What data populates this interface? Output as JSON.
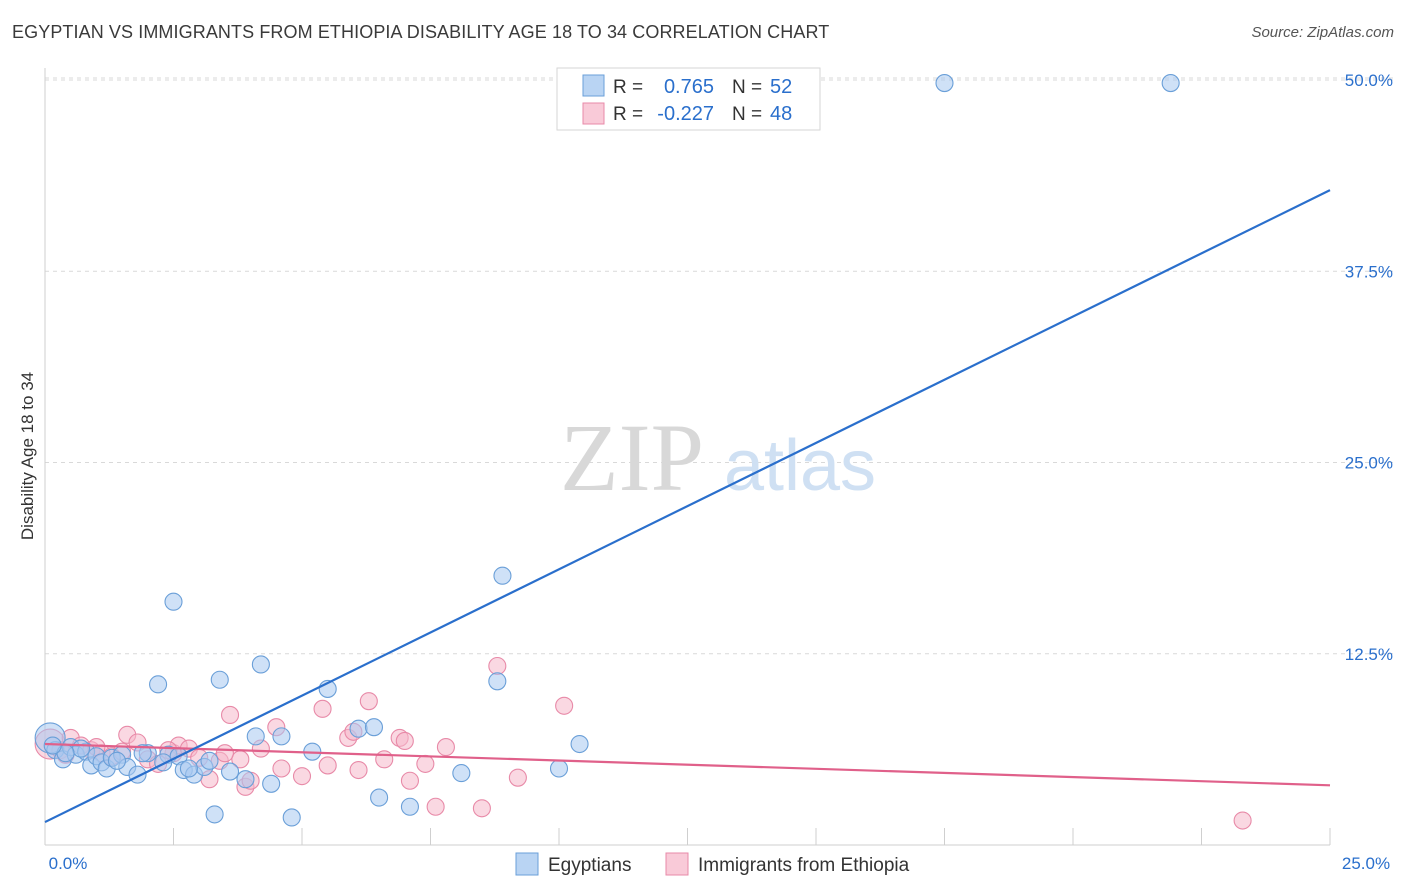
{
  "header": {
    "title": "EGYPTIAN VS IMMIGRANTS FROM ETHIOPIA DISABILITY AGE 18 TO 34 CORRELATION CHART",
    "source": "Source: ZipAtlas.com"
  },
  "watermark": {
    "zip": "ZIP",
    "atlas": "atlas"
  },
  "colors": {
    "blue_fill": "#a8c8f0",
    "blue_stroke": "#6a9fd8",
    "blue_line": "#2a6fcc",
    "pink_fill": "#f5b8cb",
    "pink_stroke": "#e88aa8",
    "pink_line": "#e0608a",
    "value_text": "#2a6fcc",
    "grid": "#d9d9d9"
  },
  "legend": {
    "rows": [
      {
        "r_label": "R =",
        "r_value": "0.765",
        "n_label": "N =",
        "n_value": "52"
      },
      {
        "r_label": "R =",
        "r_value": "-0.227",
        "n_label": "N =",
        "n_value": "48"
      }
    ]
  },
  "chart_data": {
    "type": "scatter",
    "title": "EGYPTIAN VS IMMIGRANTS FROM ETHIOPIA DISABILITY AGE 18 TO 34 CORRELATION CHART",
    "xlabel": "",
    "ylabel": "Disability Age 18 to 34",
    "xlim": [
      0,
      25
    ],
    "ylim": [
      0,
      52
    ],
    "x_tick_labels": [
      "0.0%",
      "25.0%"
    ],
    "y_ticks": [
      {
        "value": 12.5,
        "label": "12.5%"
      },
      {
        "value": 25.0,
        "label": "25.0%"
      },
      {
        "value": 37.5,
        "label": "37.5%"
      },
      {
        "value": 50.0,
        "label": "50.0%"
      }
    ],
    "series": [
      {
        "name": "Egyptians",
        "color": "#a8c8f0",
        "r": 0.765,
        "n": 52,
        "trend": {
          "x": [
            0,
            25
          ],
          "y": [
            1.5,
            42.8
          ]
        },
        "points": [
          {
            "x": 0.1,
            "y": 7.0,
            "big": true
          },
          {
            "x": 0.2,
            "y": 6.2
          },
          {
            "x": 0.35,
            "y": 5.6
          },
          {
            "x": 0.5,
            "y": 6.4
          },
          {
            "x": 0.6,
            "y": 5.9
          },
          {
            "x": 0.8,
            "y": 6.1
          },
          {
            "x": 0.9,
            "y": 5.2
          },
          {
            "x": 1.0,
            "y": 5.8
          },
          {
            "x": 1.1,
            "y": 5.4
          },
          {
            "x": 1.2,
            "y": 5.0
          },
          {
            "x": 1.3,
            "y": 5.7
          },
          {
            "x": 1.5,
            "y": 5.9
          },
          {
            "x": 1.6,
            "y": 5.1
          },
          {
            "x": 1.8,
            "y": 4.6
          },
          {
            "x": 2.0,
            "y": 6.0
          },
          {
            "x": 2.2,
            "y": 10.5
          },
          {
            "x": 2.4,
            "y": 5.9
          },
          {
            "x": 2.5,
            "y": 15.9
          },
          {
            "x": 2.6,
            "y": 5.8
          },
          {
            "x": 2.7,
            "y": 4.9
          },
          {
            "x": 2.9,
            "y": 4.6
          },
          {
            "x": 3.1,
            "y": 5.1
          },
          {
            "x": 3.3,
            "y": 2.0
          },
          {
            "x": 3.4,
            "y": 10.8
          },
          {
            "x": 3.6,
            "y": 4.8
          },
          {
            "x": 3.9,
            "y": 4.3
          },
          {
            "x": 4.1,
            "y": 7.1
          },
          {
            "x": 4.2,
            "y": 11.8
          },
          {
            "x": 4.4,
            "y": 4.0
          },
          {
            "x": 4.6,
            "y": 7.1
          },
          {
            "x": 4.8,
            "y": 1.8
          },
          {
            "x": 5.2,
            "y": 6.1
          },
          {
            "x": 5.5,
            "y": 10.2
          },
          {
            "x": 6.1,
            "y": 7.6
          },
          {
            "x": 6.4,
            "y": 7.7
          },
          {
            "x": 6.5,
            "y": 3.1
          },
          {
            "x": 7.1,
            "y": 2.5
          },
          {
            "x": 8.1,
            "y": 4.7
          },
          {
            "x": 8.8,
            "y": 10.7
          },
          {
            "x": 8.9,
            "y": 17.6
          },
          {
            "x": 10.0,
            "y": 5.0
          },
          {
            "x": 10.4,
            "y": 6.6
          },
          {
            "x": 17.5,
            "y": 49.8
          },
          {
            "x": 21.9,
            "y": 49.8
          },
          {
            "x": 1.9,
            "y": 6.0
          },
          {
            "x": 0.7,
            "y": 6.3
          },
          {
            "x": 2.3,
            "y": 5.4
          },
          {
            "x": 0.4,
            "y": 6.0
          },
          {
            "x": 3.2,
            "y": 5.5
          },
          {
            "x": 1.4,
            "y": 5.5
          },
          {
            "x": 0.15,
            "y": 6.5
          },
          {
            "x": 2.8,
            "y": 5.0
          }
        ]
      },
      {
        "name": "Immigrants from Ethiopia",
        "color": "#f5b8cb",
        "r": -0.227,
        "n": 48,
        "trend": {
          "x": [
            0,
            25
          ],
          "y": [
            6.6,
            3.9
          ]
        },
        "points": [
          {
            "x": 0.1,
            "y": 6.6,
            "big": true
          },
          {
            "x": 0.3,
            "y": 6.2
          },
          {
            "x": 0.5,
            "y": 7.0
          },
          {
            "x": 0.7,
            "y": 6.5
          },
          {
            "x": 0.9,
            "y": 6.2
          },
          {
            "x": 1.1,
            "y": 6.0
          },
          {
            "x": 1.3,
            "y": 5.8
          },
          {
            "x": 1.5,
            "y": 6.1
          },
          {
            "x": 1.6,
            "y": 7.2
          },
          {
            "x": 1.8,
            "y": 6.7
          },
          {
            "x": 2.0,
            "y": 5.6
          },
          {
            "x": 2.2,
            "y": 5.3
          },
          {
            "x": 2.5,
            "y": 6.0
          },
          {
            "x": 2.6,
            "y": 6.5
          },
          {
            "x": 2.8,
            "y": 6.3
          },
          {
            "x": 3.0,
            "y": 5.7
          },
          {
            "x": 3.2,
            "y": 4.3
          },
          {
            "x": 3.4,
            "y": 5.5
          },
          {
            "x": 3.6,
            "y": 8.5
          },
          {
            "x": 3.8,
            "y": 5.6
          },
          {
            "x": 3.9,
            "y": 3.8
          },
          {
            "x": 4.0,
            "y": 4.2
          },
          {
            "x": 4.2,
            "y": 6.3
          },
          {
            "x": 4.5,
            "y": 7.7
          },
          {
            "x": 4.6,
            "y": 5.0
          },
          {
            "x": 5.0,
            "y": 4.5
          },
          {
            "x": 5.4,
            "y": 8.9
          },
          {
            "x": 5.5,
            "y": 5.2
          },
          {
            "x": 5.9,
            "y": 7.0
          },
          {
            "x": 6.1,
            "y": 4.9
          },
          {
            "x": 6.3,
            "y": 9.4
          },
          {
            "x": 6.6,
            "y": 5.6
          },
          {
            "x": 6.9,
            "y": 7.0
          },
          {
            "x": 7.1,
            "y": 4.2
          },
          {
            "x": 7.4,
            "y": 5.3
          },
          {
            "x": 7.6,
            "y": 2.5
          },
          {
            "x": 7.8,
            "y": 6.4
          },
          {
            "x": 8.5,
            "y": 2.4
          },
          {
            "x": 8.8,
            "y": 11.7
          },
          {
            "x": 9.2,
            "y": 4.4
          },
          {
            "x": 10.1,
            "y": 9.1
          },
          {
            "x": 23.3,
            "y": 1.6
          },
          {
            "x": 6.0,
            "y": 7.4
          },
          {
            "x": 7.0,
            "y": 6.8
          },
          {
            "x": 1.0,
            "y": 6.4
          },
          {
            "x": 2.4,
            "y": 6.2
          },
          {
            "x": 3.5,
            "y": 6.0
          },
          {
            "x": 0.4,
            "y": 5.9
          }
        ]
      }
    ]
  }
}
